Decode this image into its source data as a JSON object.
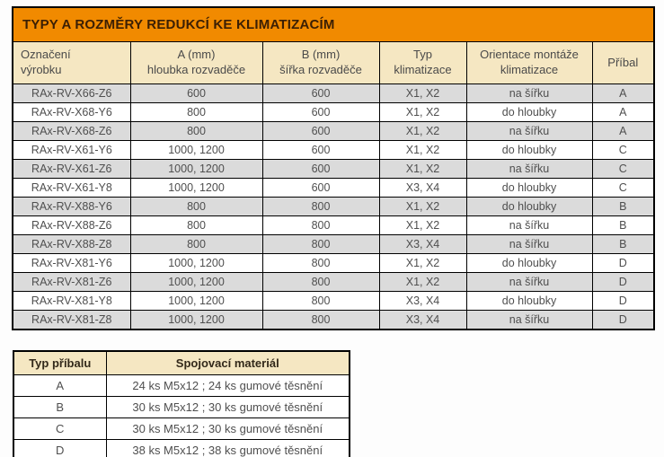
{
  "colors": {
    "title_bar_bg": "#F18A00",
    "title_text": "#3B1F04",
    "header_bg": "#F5E7C2",
    "row_alt_bg": "#DBDBDB",
    "body_text": "#4F4F4F",
    "border": "#000000"
  },
  "main_table": {
    "title": "TYPY A ROZMĚRY REDUKCÍ KE KLIMATIZACÍM",
    "columns": [
      "Označení\nvýrobku",
      "A (mm)\nhloubka rozvaděče",
      "B (mm)\nšířka rozvaděče",
      "Typ\nklimatizace",
      "Orientace montáže\nklimatizace",
      "Příbal"
    ],
    "rows": [
      [
        "RAx-RV-X66-Z6",
        "600",
        "600",
        "X1, X2",
        "na šířku",
        "A"
      ],
      [
        "RAx-RV-X68-Y6",
        "800",
        "600",
        "X1, X2",
        "do hloubky",
        "A"
      ],
      [
        "RAx-RV-X68-Z6",
        "800",
        "600",
        "X1, X2",
        "na šířku",
        "A"
      ],
      [
        "RAx-RV-X61-Y6",
        "1000, 1200",
        "600",
        "X1, X2",
        "do hloubky",
        "C"
      ],
      [
        "RAx-RV-X61-Z6",
        "1000, 1200",
        "600",
        "X1, X2",
        "na šířku",
        "C"
      ],
      [
        "RAx-RV-X61-Y8",
        "1000, 1200",
        "600",
        "X3, X4",
        "do hloubky",
        "C"
      ],
      [
        "RAx-RV-X88-Y6",
        "800",
        "800",
        "X1, X2",
        "do hloubky",
        "B"
      ],
      [
        "RAx-RV-X88-Z6",
        "800",
        "800",
        "X1, X2",
        "na šířku",
        "B"
      ],
      [
        "RAx-RV-X88-Z8",
        "800",
        "800",
        "X3, X4",
        "na šířku",
        "B"
      ],
      [
        "RAx-RV-X81-Y6",
        "1000, 1200",
        "800",
        "X1, X2",
        "do hloubky",
        "D"
      ],
      [
        "RAx-RV-X81-Z6",
        "1000, 1200",
        "800",
        "X1, X2",
        "na šířku",
        "D"
      ],
      [
        "RAx-RV-X81-Y8",
        "1000, 1200",
        "800",
        "X3, X4",
        "do hloubky",
        "D"
      ],
      [
        "RAx-RV-X81-Z8",
        "1000, 1200",
        "800",
        "X3, X4",
        "na šířku",
        "D"
      ]
    ]
  },
  "accessories_table": {
    "columns": [
      "Typ příbalu",
      "Spojovací materiál"
    ],
    "rows": [
      [
        "A",
        "24 ks M5x12 ; 24 ks gumové těsnění"
      ],
      [
        "B",
        "30 ks M5x12 ; 30 ks gumové těsnění"
      ],
      [
        "C",
        "30 ks M5x12 ; 30 ks gumové těsnění"
      ],
      [
        "D",
        "38 ks M5x12 ; 38 ks gumové těsnění"
      ]
    ]
  }
}
